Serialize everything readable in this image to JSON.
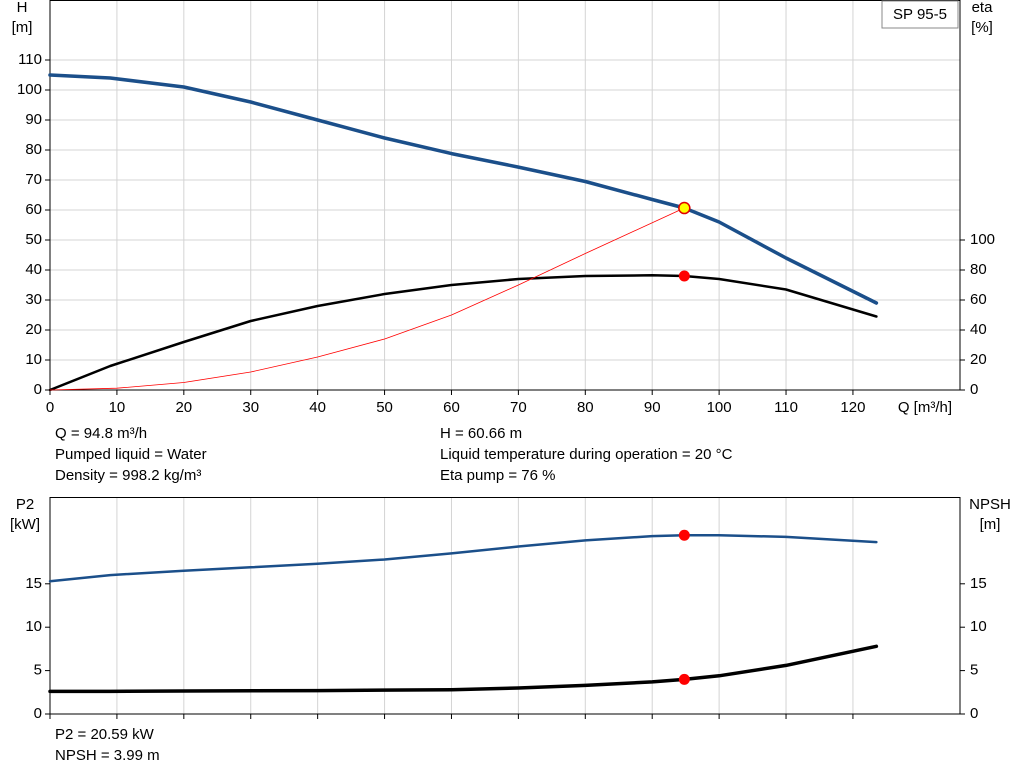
{
  "chart_data": [
    {
      "type": "line",
      "title": "SP 95-5",
      "y_label": "H",
      "y_unit": "[m]",
      "y2_label": "eta",
      "y2_unit": "[%]",
      "x_label": "Q [m³/h]",
      "xlim": [
        0,
        136
      ],
      "xticks": [
        0,
        10,
        20,
        30,
        40,
        50,
        60,
        70,
        80,
        90,
        100,
        110,
        120
      ],
      "ylim": [
        0,
        130
      ],
      "yticks": [
        0,
        10,
        20,
        30,
        40,
        50,
        60,
        70,
        80,
        90,
        100,
        110
      ],
      "y2lim": [
        0,
        260
      ],
      "y2ticks": [
        0,
        20,
        40,
        60,
        80,
        100
      ],
      "grid": true,
      "series": [
        {
          "color": "#1b4f8a",
          "linestyle": "thick",
          "x": [
            0,
            9,
            20,
            30,
            40,
            50,
            60,
            70,
            80,
            90,
            94.8,
            100,
            110,
            123.5
          ],
          "values": [
            105,
            104,
            101,
            96,
            90,
            84,
            78.8,
            74.3,
            69.5,
            63.5,
            60.66,
            56,
            44,
            29
          ]
        },
        {
          "color": "#000000",
          "linestyle": "medium",
          "axis": "y2",
          "x": [
            0,
            9,
            20,
            30,
            40,
            50,
            60,
            70,
            80,
            90,
            94.8,
            100,
            110,
            123.5
          ],
          "values": [
            0,
            16,
            32,
            46,
            56,
            64,
            70,
            74,
            76,
            76.5,
            76,
            74,
            67,
            49
          ]
        },
        {
          "color": "#ff0000",
          "linestyle": "thin",
          "x": [
            0,
            10,
            20,
            30,
            40,
            50,
            60,
            70,
            80,
            94.8
          ],
          "values": [
            0,
            0.6,
            2.5,
            6,
            11,
            17,
            25,
            35,
            45.5,
            60.66
          ]
        }
      ],
      "points": [
        {
          "color": "#ffff00",
          "x": 94.8,
          "y": 60.66
        },
        {
          "color": "#ff0000",
          "axis": "y2",
          "x": 94.8,
          "y": 76
        }
      ],
      "annotations": [
        "Q = 94.8 m³/h",
        "Pumped liquid = Water",
        "Density = 998.2 kg/m³",
        "H = 60.66 m",
        "Liquid temperature during operation = 20 °C",
        "Eta pump = 76 %"
      ]
    },
    {
      "type": "line",
      "y_label": "P2",
      "y_unit": "[kW]",
      "y2_label": "NPSH",
      "y2_unit": "[m]",
      "xlim": [
        0,
        136
      ],
      "xticks": [
        0,
        10,
        20,
        30,
        40,
        50,
        60,
        70,
        80,
        90,
        100,
        110,
        120
      ],
      "ylim": [
        0,
        25
      ],
      "yticks": [
        0,
        5,
        10,
        15
      ],
      "y2lim": [
        0,
        25
      ],
      "y2ticks": [
        0,
        5,
        10,
        15
      ],
      "grid": true,
      "series": [
        {
          "color": "#1b4f8a",
          "linestyle": "medium",
          "x": [
            0,
            9,
            20,
            30,
            40,
            50,
            60,
            70,
            80,
            90,
            94.8,
            100,
            110,
            123.5
          ],
          "values": [
            15.3,
            16,
            16.5,
            16.9,
            17.3,
            17.8,
            18.5,
            19.3,
            20,
            20.5,
            20.59,
            20.6,
            20.4,
            19.8
          ]
        },
        {
          "color": "#000000",
          "linestyle": "thick",
          "axis": "y2",
          "x": [
            0,
            9,
            20,
            40,
            60,
            70,
            80,
            90,
            94.8,
            100,
            110,
            123.5
          ],
          "values": [
            2.6,
            2.6,
            2.65,
            2.7,
            2.8,
            3,
            3.3,
            3.7,
            3.99,
            4.4,
            5.6,
            7.8
          ]
        }
      ],
      "points": [
        {
          "color": "#ff0000",
          "x": 94.8,
          "y": 20.59
        },
        {
          "color": "#ff0000",
          "axis": "y2",
          "x": 94.8,
          "y": 3.99
        }
      ],
      "annotations": [
        "P2 = 20.59 kW",
        "NPSH = 3.99 m"
      ]
    }
  ]
}
